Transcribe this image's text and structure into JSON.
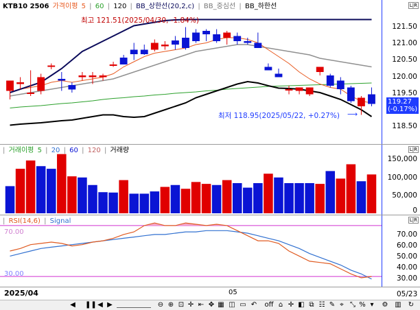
{
  "price_panel": {
    "legend": {
      "symbol": "KTB10 2506",
      "ma_label": "가격이평",
      "ma_periods": [
        "5",
        "60",
        "120"
      ],
      "bb_upper": "BB_상한선(20,2,c)",
      "bb_mid": "BB_중심선",
      "bb_lower": "BB_하한선"
    },
    "high_annotation": "최고 121.51(2025/04/30, -1.84%)",
    "low_annotation": "최저 118.95(2025/05/22, +0.27%)",
    "current_price": "119.27",
    "current_change": "(-0.17%)",
    "y_ticks": [
      "121.50",
      "121.00",
      "120.50",
      "120.00",
      "119.50",
      "118.50"
    ]
  },
  "volume_panel": {
    "legend": {
      "ma_label": "거래이평",
      "ma_periods": [
        "5",
        "20",
        "60",
        "120"
      ],
      "volume_label": "거래량"
    },
    "y_ticks": [
      "150,000",
      "100,000",
      "50,000",
      "0"
    ]
  },
  "rsi_panel": {
    "legend": {
      "rsi": "RSI(14,6)",
      "signal": "Signal"
    },
    "level_high": "70.00",
    "level_low": "30.00",
    "y_ticks": [
      "70.00",
      "60.00",
      "50.00",
      "40.00",
      "30.00"
    ]
  },
  "x_axis": {
    "left_label": "2025/04",
    "mid_label": "05",
    "right_label": "05/23"
  },
  "toolbar": {
    "off_label": "off"
  },
  "colors": {
    "up": "#e00000",
    "down": "#0a14d4",
    "bb_outer": "#0a0a5a",
    "bb_mid": "#909090",
    "ma5": "#e85a20",
    "ma60": "#2aa02a",
    "ma120": "#000000",
    "rsi_line": "#e05a20",
    "signal_line": "#3070d0",
    "level_line": "#d030d0"
  },
  "chart_data": [
    {
      "type": "candlestick",
      "title": "KTB10 2506",
      "ylim": [
        118.2,
        121.9
      ],
      "candles": [
        {
          "o": 119.65,
          "h": 119.95,
          "l": 119.4,
          "c": 119.95
        },
        {
          "o": 119.85,
          "h": 120.05,
          "l": 119.7,
          "c": 119.9
        },
        {
          "o": 119.6,
          "h": 120.25,
          "l": 119.5,
          "c": 119.6
        },
        {
          "o": 119.65,
          "h": 120.15,
          "l": 119.55,
          "c": 120.05
        },
        {
          "o": 120.35,
          "h": 120.45,
          "l": 120.28,
          "c": 120.39
        },
        {
          "o": 120.0,
          "h": 120.2,
          "l": 119.65,
          "c": 119.95
        },
        {
          "o": 119.82,
          "h": 119.9,
          "l": 119.6,
          "c": 119.69
        },
        {
          "o": 120.05,
          "h": 120.2,
          "l": 119.95,
          "c": 120.1
        },
        {
          "o": 120.05,
          "h": 120.2,
          "l": 119.85,
          "c": 120.1
        },
        {
          "o": 120.05,
          "h": 120.15,
          "l": 119.95,
          "c": 120.1
        },
        {
          "o": 120.42,
          "h": 120.5,
          "l": 120.35,
          "c": 120.42
        },
        {
          "o": 120.62,
          "h": 120.7,
          "l": 120.42,
          "c": 120.42
        },
        {
          "o": 120.85,
          "h": 121.05,
          "l": 120.55,
          "c": 120.72
        },
        {
          "o": 120.85,
          "h": 121.0,
          "l": 120.7,
          "c": 120.72
        },
        {
          "o": 120.85,
          "h": 121.15,
          "l": 120.8,
          "c": 121.05
        },
        {
          "o": 120.95,
          "h": 121.1,
          "l": 120.85,
          "c": 121.0
        },
        {
          "o": 121.12,
          "h": 121.25,
          "l": 120.85,
          "c": 121.0
        },
        {
          "o": 121.2,
          "h": 121.51,
          "l": 120.85,
          "c": 120.9
        },
        {
          "o": 121.35,
          "h": 121.45,
          "l": 121.05,
          "c": 121.1
        },
        {
          "o": 121.4,
          "h": 121.45,
          "l": 121.1,
          "c": 121.3
        },
        {
          "o": 121.3,
          "h": 121.45,
          "l": 121.05,
          "c": 121.1
        },
        {
          "o": 121.2,
          "h": 121.4,
          "l": 121.0,
          "c": 121.35
        },
        {
          "o": 121.25,
          "h": 121.35,
          "l": 121.0,
          "c": 121.1
        },
        {
          "o": 121.1,
          "h": 121.2,
          "l": 121.0,
          "c": 121.05
        },
        {
          "o": 121.05,
          "h": 121.35,
          "l": 120.9,
          "c": 120.9
        },
        {
          "o": 120.35,
          "h": 120.45,
          "l": 120.25,
          "c": 120.25
        },
        {
          "o": 120.15,
          "h": 120.3,
          "l": 120.05,
          "c": 120.05
        },
        {
          "o": 119.7,
          "h": 119.8,
          "l": 119.55,
          "c": 119.7
        },
        {
          "o": 119.65,
          "h": 119.75,
          "l": 119.55,
          "c": 119.75
        },
        {
          "o": 119.55,
          "h": 119.75,
          "l": 119.5,
          "c": 119.75
        },
        {
          "o": 120.2,
          "h": 120.35,
          "l": 120.1,
          "c": 120.35
        },
        {
          "o": 120.1,
          "h": 120.15,
          "l": 119.75,
          "c": 119.8
        },
        {
          "o": 119.95,
          "h": 120.05,
          "l": 119.55,
          "c": 119.7
        },
        {
          "o": 119.75,
          "h": 119.8,
          "l": 119.3,
          "c": 119.35
        },
        {
          "o": 119.2,
          "h": 119.5,
          "l": 118.95,
          "c": 119.45
        },
        {
          "o": 119.55,
          "h": 119.75,
          "l": 119.2,
          "c": 119.27
        }
      ],
      "bb_upper": [
        119.6,
        119.7,
        119.8,
        119.9,
        120.1,
        120.3,
        120.55,
        120.8,
        120.95,
        121.1,
        121.25,
        121.4,
        121.55,
        121.6,
        121.65,
        121.7,
        121.72,
        121.73,
        121.73,
        121.73,
        121.73,
        121.73,
        121.73,
        121.73,
        121.73,
        121.73,
        121.73,
        121.73,
        121.73,
        121.73,
        121.73,
        121.73,
        121.73,
        121.73,
        121.73,
        121.73
      ],
      "bb_mid": [
        119.5,
        119.55,
        119.6,
        119.65,
        119.7,
        119.75,
        119.8,
        119.85,
        119.9,
        119.95,
        120.0,
        120.1,
        120.2,
        120.3,
        120.4,
        120.5,
        120.6,
        120.7,
        120.8,
        120.85,
        120.9,
        120.95,
        121.0,
        121.0,
        120.95,
        120.9,
        120.85,
        120.8,
        120.75,
        120.7,
        120.6,
        120.55,
        120.5,
        120.45,
        120.4,
        120.35
      ],
      "bb_lower": [
        118.65,
        118.68,
        118.7,
        118.72,
        118.75,
        118.78,
        118.8,
        118.85,
        118.9,
        118.95,
        118.95,
        118.9,
        118.88,
        118.9,
        119.0,
        119.1,
        119.2,
        119.3,
        119.45,
        119.55,
        119.65,
        119.75,
        119.85,
        119.92,
        119.88,
        119.8,
        119.73,
        119.72,
        119.7,
        119.65,
        119.6,
        119.5,
        119.4,
        119.25,
        119.1,
        118.9
      ],
      "ma5": [
        119.6,
        119.7,
        119.75,
        119.8,
        119.9,
        119.95,
        119.9,
        119.95,
        120.0,
        120.05,
        120.15,
        120.35,
        120.5,
        120.65,
        120.75,
        120.8,
        120.85,
        120.9,
        121.0,
        121.05,
        121.15,
        121.2,
        121.2,
        121.15,
        121.05,
        120.85,
        120.65,
        120.45,
        120.2,
        120.0,
        119.85,
        119.75,
        119.7,
        119.5,
        119.35,
        119.3
      ],
      "ma60": [
        119.15,
        119.18,
        119.2,
        119.22,
        119.25,
        119.28,
        119.3,
        119.33,
        119.36,
        119.4,
        119.43,
        119.45,
        119.48,
        119.5,
        119.53,
        119.55,
        119.58,
        119.6,
        119.62,
        119.65,
        119.67,
        119.7,
        119.72,
        119.74,
        119.76,
        119.78,
        119.79,
        119.8,
        119.81,
        119.82,
        119.83,
        119.84,
        119.85,
        119.86,
        119.87,
        119.88
      ]
    },
    {
      "type": "bar",
      "title": "거래량",
      "ylim": [
        0,
        160000
      ],
      "values": [
        72000,
        118000,
        140000,
        125000,
        118000,
        157000,
        98000,
        95000,
        75000,
        56000,
        55000,
        88000,
        52000,
        52000,
        58000,
        70000,
        75000,
        65000,
        83000,
        78000,
        75000,
        88000,
        80000,
        68000,
        80000,
        105000,
        95000,
        80000,
        80000,
        80000,
        78000,
        112000,
        92000,
        130000,
        85000,
        103000
      ],
      "directions": [
        "down",
        "up",
        "up",
        "down",
        "down",
        "up",
        "up",
        "down",
        "down",
        "down",
        "down",
        "up",
        "down",
        "down",
        "down",
        "up",
        "down",
        "up",
        "up",
        "up",
        "down",
        "up",
        "down",
        "down",
        "down",
        "up",
        "down",
        "down",
        "down",
        "down",
        "up",
        "down",
        "up",
        "up",
        "down",
        "up"
      ]
    },
    {
      "type": "line",
      "title": "RSI(14,6)",
      "ylim": [
        22,
        78
      ],
      "series": [
        {
          "name": "RSI(14,6)",
          "values": [
            50,
            52,
            55,
            56,
            57,
            56,
            54,
            55,
            57,
            58,
            60,
            63,
            65,
            70,
            72,
            70,
            70,
            72,
            71,
            70,
            71,
            70,
            66,
            62,
            58,
            58,
            56,
            50,
            46,
            42,
            41,
            40,
            36,
            32,
            29,
            30
          ]
        },
        {
          "name": "Signal",
          "values": [
            46,
            48,
            50,
            52,
            53,
            54,
            55,
            56,
            57,
            58,
            59,
            60,
            61,
            62,
            63,
            63,
            64,
            65,
            65,
            66,
            66,
            66,
            65,
            64,
            62,
            60,
            58,
            55,
            52,
            48,
            45,
            42,
            39,
            35,
            32,
            28
          ]
        }
      ],
      "levels": [
        70,
        30
      ]
    }
  ]
}
